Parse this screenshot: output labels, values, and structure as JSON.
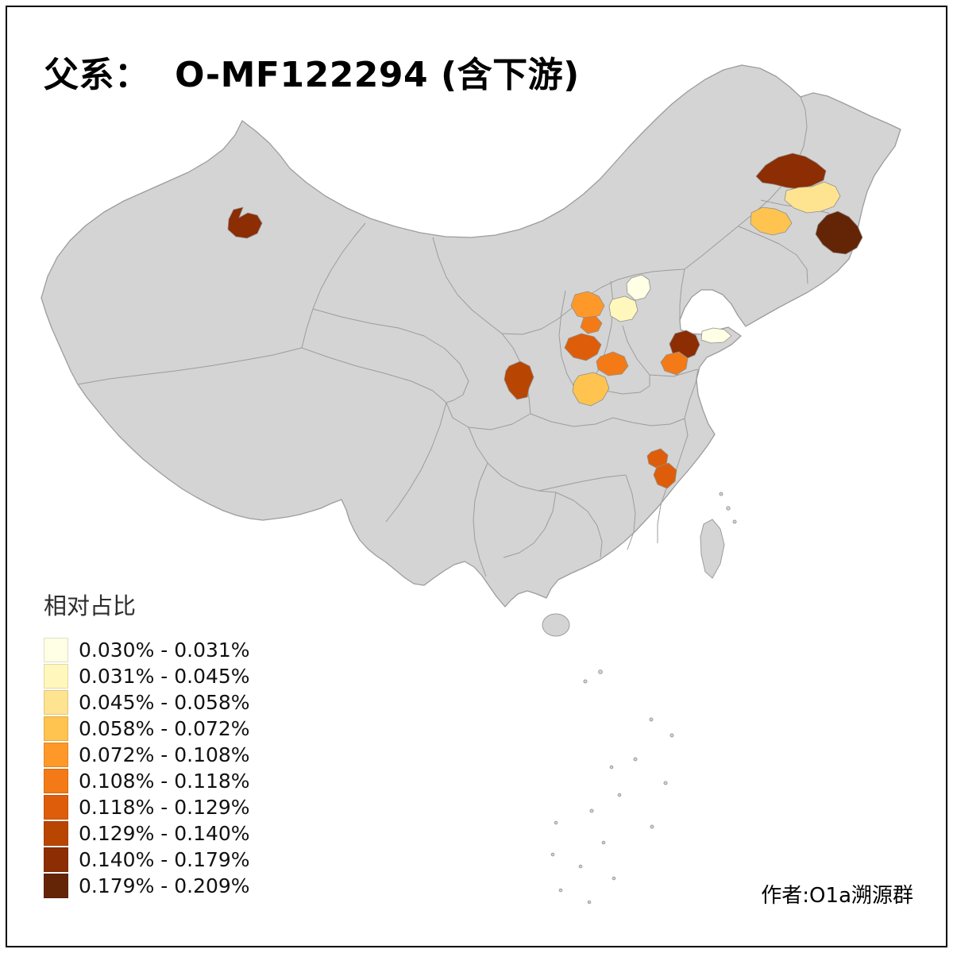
{
  "title": "父系：  O-MF122294 (含下游)",
  "legend": {
    "title": "相对占比",
    "items": [
      {
        "label": "0.030% - 0.031%",
        "color": "#FFFFE5"
      },
      {
        "label": "0.031% - 0.045%",
        "color": "#FFF7BC"
      },
      {
        "label": "0.045% - 0.058%",
        "color": "#FEE391"
      },
      {
        "label": "0.058% - 0.072%",
        "color": "#FEC44F"
      },
      {
        "label": "0.072% - 0.108%",
        "color": "#FE9929"
      },
      {
        "label": "0.108% - 0.118%",
        "color": "#F37A16"
      },
      {
        "label": "0.118% - 0.129%",
        "color": "#DE5D0A"
      },
      {
        "label": "0.129% - 0.140%",
        "color": "#B94503"
      },
      {
        "label": "0.140% - 0.179%",
        "color": "#8C2D04"
      },
      {
        "label": "0.179% - 0.209%",
        "color": "#642506"
      }
    ]
  },
  "attribution": "作者:O1a溯源群",
  "map": {
    "land_fill": "#D4D4D4",
    "border_color": "#9C9C9C",
    "sea_color": "#FFFFFF",
    "frame_color": "#000000",
    "regions": [
      {
        "id": "xinjiang-north",
        "legend_index": 8
      },
      {
        "id": "northeast-upper",
        "legend_index": 8
      },
      {
        "id": "northeast-pale",
        "legend_index": 2
      },
      {
        "id": "northeast-light-orange",
        "legend_index": 3
      },
      {
        "id": "northeast-darkest",
        "legend_index": 9
      },
      {
        "id": "beijing",
        "legend_index": 0
      },
      {
        "id": "hebei-pale-yellow",
        "legend_index": 1
      },
      {
        "id": "shanxi-north",
        "legend_index": 4
      },
      {
        "id": "shanxi-mid",
        "legend_index": 5
      },
      {
        "id": "shanxi-south",
        "legend_index": 6
      },
      {
        "id": "gansu-east",
        "legend_index": 7
      },
      {
        "id": "henan-west",
        "legend_index": 5
      },
      {
        "id": "shaanxi-south",
        "legend_index": 3
      },
      {
        "id": "shandong-dark",
        "legend_index": 8
      },
      {
        "id": "shandong-orange",
        "legend_index": 5
      },
      {
        "id": "shandong-peninsula-pale",
        "legend_index": 0
      },
      {
        "id": "hubei-north-a",
        "legend_index": 6
      },
      {
        "id": "hubei-north-b",
        "legend_index": 6
      }
    ]
  }
}
